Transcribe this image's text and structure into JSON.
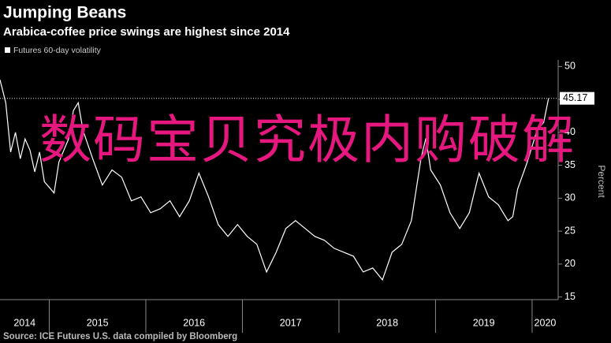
{
  "chart_data": {
    "type": "line",
    "title": "Jumping Beans",
    "subtitle": "Arabica-coffee price swings are highest since 2014",
    "source": "Source: ICE Futures U.S. data compiled by Bloomberg",
    "y_label": "Percent",
    "overlay_text": "数码宝贝究极内购破解",
    "series": [
      {
        "name": "Futures 60-day volatility",
        "color": "#ffffff",
        "x": [
          2014.49,
          2014.55,
          2014.6,
          2014.65,
          2014.7,
          2014.75,
          2014.8,
          2014.85,
          2014.9,
          2014.95,
          2015.05,
          2015.1,
          2015.2,
          2015.25,
          2015.3,
          2015.35,
          2015.45,
          2015.55,
          2015.65,
          2015.75,
          2015.85,
          2015.95,
          2016.05,
          2016.15,
          2016.25,
          2016.35,
          2016.45,
          2016.55,
          2016.65,
          2016.75,
          2016.85,
          2016.95,
          2017.05,
          2017.15,
          2017.25,
          2017.35,
          2017.45,
          2017.55,
          2017.65,
          2017.75,
          2017.85,
          2017.95,
          2018.05,
          2018.15,
          2018.25,
          2018.35,
          2018.45,
          2018.55,
          2018.65,
          2018.75,
          2018.85,
          2018.9,
          2018.95,
          2019.05,
          2019.15,
          2019.25,
          2019.35,
          2019.45,
          2019.55,
          2019.65,
          2019.75,
          2019.8,
          2019.85,
          2019.95,
          2020.05,
          2020.12,
          2020.17
        ],
        "values": [
          48,
          44.5,
          37,
          40,
          36,
          39,
          37.3,
          34,
          37,
          32.5,
          30.8,
          35.5,
          39,
          43.3,
          44.5,
          40.3,
          36,
          32,
          34.3,
          33.2,
          29.6,
          30.2,
          27.8,
          28.4,
          29.6,
          27.2,
          29.6,
          33.8,
          30.2,
          26,
          24.2,
          26,
          24.2,
          23,
          18.8,
          21.8,
          25.4,
          26.6,
          25.4,
          24.2,
          23.6,
          22.4,
          21.8,
          21.2,
          18.8,
          19.4,
          17.6,
          21.8,
          23,
          26.6,
          36.1,
          39.1,
          34.3,
          32,
          27.8,
          25.4,
          27.8,
          33.8,
          30.2,
          29,
          26.6,
          27.2,
          31.4,
          35.5,
          40.3,
          41.5,
          45.17
        ]
      }
    ],
    "xlim": [
      2014.49,
      2020.27
    ],
    "xticks": [
      2015,
      2016,
      2017,
      2018,
      2019,
      2020
    ],
    "year_labels": [
      2014,
      2015,
      2016,
      2017,
      2018,
      2019,
      2020
    ],
    "ylim": [
      14.6,
      51
    ],
    "yticks": [
      15,
      20,
      25,
      30,
      35,
      40,
      45,
      50
    ]
  }
}
